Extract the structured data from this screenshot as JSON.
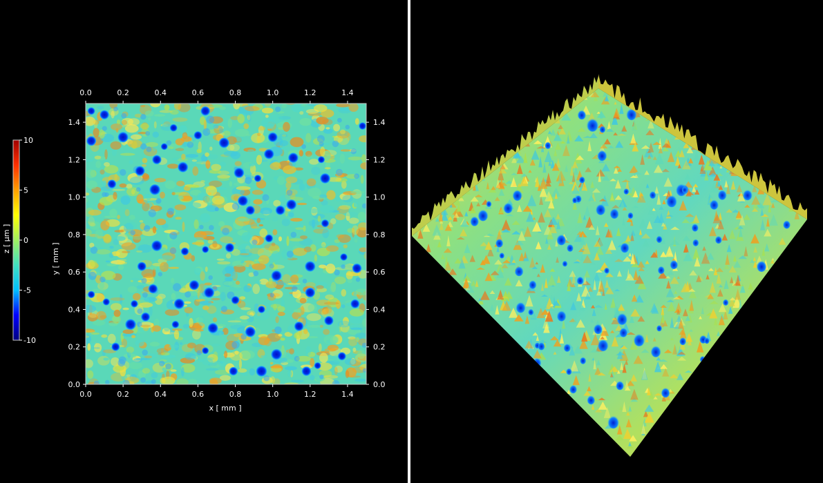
{
  "chart_data": [
    {
      "type": "heatmap",
      "xlabel": "x [ mm ]",
      "ylabel": "y [ mm ]",
      "xlim": [
        0,
        1.5
      ],
      "ylim": [
        0,
        1.5
      ],
      "xticks": [
        "0.0",
        "0.2",
        "0.4",
        "0.6",
        "0.8",
        "1.0",
        "1.2",
        "1.4"
      ],
      "yticks": [
        "0.0",
        "0.2",
        "0.4",
        "0.6",
        "0.8",
        "1.0",
        "1.2",
        "1.4"
      ],
      "colorbar": {
        "label": "z [ µm ]",
        "range": [
          -10,
          10
        ],
        "ticks": [
          "10",
          "5",
          "0",
          "-5",
          "-10"
        ],
        "colormap": [
          "#000080",
          "#0000ff",
          "#00c0ff",
          "#40e0c0",
          "#a0f060",
          "#ffff00",
          "#ffa000",
          "#ff3000",
          "#a00000"
        ]
      },
      "pits_xy": [
        [
          0.03,
          1.46
        ],
        [
          0.03,
          1.3
        ],
        [
          0.14,
          1.07
        ],
        [
          0.29,
          1.14
        ],
        [
          0.38,
          1.2
        ],
        [
          0.42,
          1.27
        ],
        [
          0.37,
          1.04
        ],
        [
          0.3,
          0.63
        ],
        [
          0.38,
          0.74
        ],
        [
          0.53,
          0.71
        ],
        [
          0.64,
          0.72
        ],
        [
          0.77,
          0.73
        ],
        [
          0.92,
          1.1
        ],
        [
          0.84,
          0.98
        ],
        [
          0.88,
          0.93
        ],
        [
          0.98,
          0.78
        ],
        [
          1.02,
          0.58
        ],
        [
          1.04,
          0.93
        ],
        [
          1.1,
          0.96
        ],
        [
          1.28,
          0.86
        ],
        [
          1.38,
          0.68
        ],
        [
          1.45,
          0.62
        ],
        [
          1.44,
          0.43
        ],
        [
          1.37,
          0.15
        ],
        [
          1.24,
          0.1
        ],
        [
          1.02,
          0.16
        ],
        [
          0.8,
          0.45
        ],
        [
          0.66,
          0.49
        ],
        [
          0.5,
          0.43
        ],
        [
          0.32,
          0.36
        ],
        [
          0.24,
          0.32
        ],
        [
          0.16,
          0.2
        ],
        [
          0.11,
          0.44
        ],
        [
          0.03,
          0.48
        ],
        [
          0.26,
          0.43
        ],
        [
          0.48,
          0.32
        ],
        [
          0.64,
          0.18
        ],
        [
          0.79,
          0.07
        ],
        [
          0.94,
          0.07
        ],
        [
          1.14,
          0.31
        ],
        [
          1.18,
          0.07
        ],
        [
          1.3,
          0.34
        ],
        [
          1.2,
          0.49
        ],
        [
          0.36,
          0.51
        ],
        [
          0.58,
          0.53
        ],
        [
          0.68,
          0.3
        ],
        [
          0.88,
          0.28
        ],
        [
          0.94,
          0.4
        ],
        [
          1.2,
          0.63
        ],
        [
          1.28,
          1.1
        ],
        [
          1.11,
          1.21
        ],
        [
          0.98,
          1.23
        ],
        [
          0.82,
          1.13
        ],
        [
          0.74,
          1.29
        ],
        [
          0.6,
          1.33
        ],
        [
          0.52,
          1.16
        ],
        [
          0.2,
          1.32
        ],
        [
          0.1,
          1.44
        ],
        [
          0.47,
          1.37
        ],
        [
          0.64,
          1.46
        ],
        [
          1.0,
          1.32
        ],
        [
          1.26,
          1.2
        ],
        [
          1.48,
          1.38
        ]
      ]
    },
    {
      "type": "heatmap",
      "view": "3d-surface"
    }
  ]
}
